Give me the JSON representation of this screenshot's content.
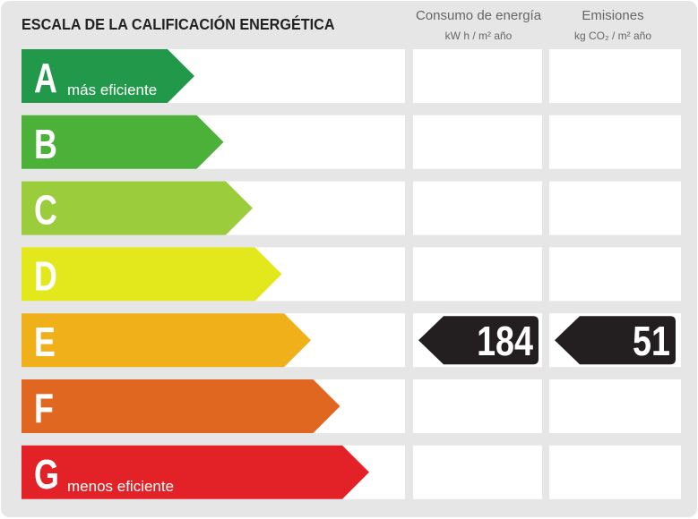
{
  "header": {
    "title": "ESCALA DE LA CALIFICACIÓN ENERGÉTICA",
    "columns": [
      {
        "title": "Consumo de energía",
        "unit": "kW h / m² año"
      },
      {
        "title": "Emisiones",
        "unit": "kg CO₂ / m² año"
      }
    ]
  },
  "rows": [
    {
      "letter": "A",
      "note": "más eficiente",
      "color": "#22994a"
    },
    {
      "letter": "B",
      "color": "#4bb138"
    },
    {
      "letter": "C",
      "color": "#9acc3c"
    },
    {
      "letter": "D",
      "color": "#e3e81c"
    },
    {
      "letter": "E",
      "color": "#efb01a",
      "consumption": 184,
      "emissions": 51
    },
    {
      "letter": "F",
      "color": "#e0671f"
    },
    {
      "letter": "G",
      "note": "menos eficiente",
      "color": "#e32228"
    }
  ]
}
